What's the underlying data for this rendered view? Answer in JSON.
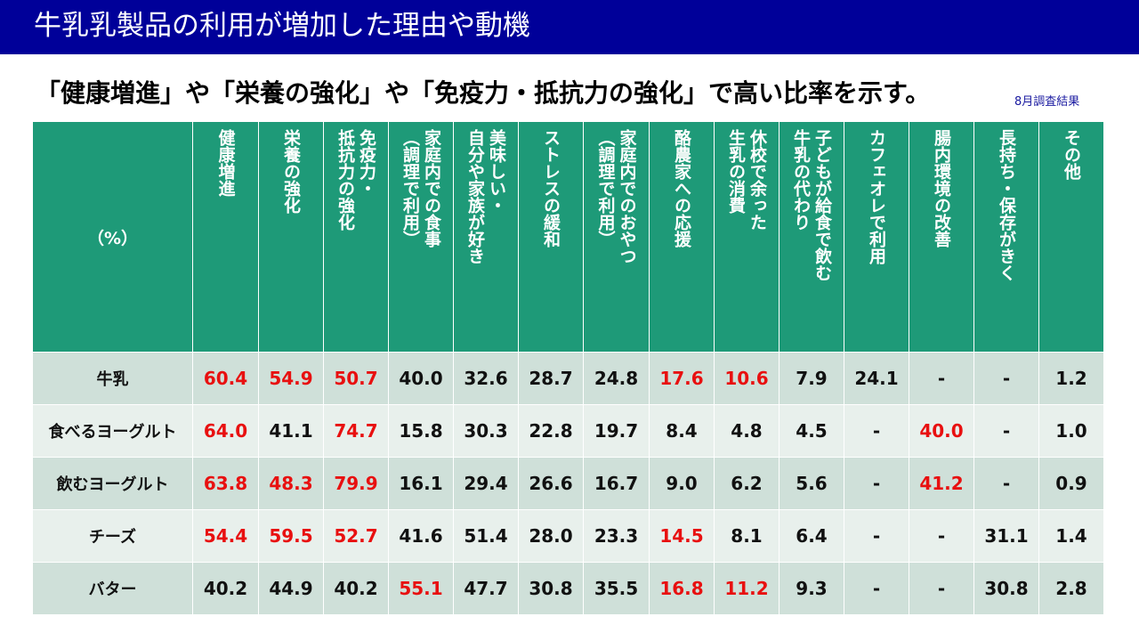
{
  "title": "牛乳乳製品の利用が増加した理由や動機",
  "subtitle": "「健康増進」や「栄養の強化」や「免疫力・抵抗力の強化」で高い比率を示す。",
  "note": "8月調査結果",
  "table": {
    "corner": "（%）",
    "columns": [
      "健康増進",
      "栄養の強化",
      "免疫力・\n抵抗力の強化",
      "家庭内での食事\n（調理で利用）",
      "美味しい・\n自分や家族が好き",
      "ストレスの緩和",
      "家庭内でのおやつ\n（調理で利用）",
      "酪農家への応援",
      "休校で余った\n生乳の消費",
      "子どもが給食で飲む\n牛乳の代わり",
      "カフェオレで利用",
      "腸内環境の改善",
      "長持ち・保存がきく",
      "その他"
    ],
    "rows": [
      {
        "label": "牛乳",
        "values": [
          "60.4",
          "54.9",
          "50.7",
          "40.0",
          "32.6",
          "28.7",
          "24.8",
          "17.6",
          "10.6",
          "7.9",
          "24.1",
          "-",
          "-",
          "1.2"
        ],
        "highlight": [
          0,
          1,
          2,
          7,
          8
        ]
      },
      {
        "label": "食べるヨーグルト",
        "values": [
          "64.0",
          "41.1",
          "74.7",
          "15.8",
          "30.3",
          "22.8",
          "19.7",
          "8.4",
          "4.8",
          "4.5",
          "-",
          "40.0",
          "-",
          "1.0"
        ],
        "highlight": [
          0,
          2,
          11
        ]
      },
      {
        "label": "飲むヨーグルト",
        "values": [
          "63.8",
          "48.3",
          "79.9",
          "16.1",
          "29.4",
          "26.6",
          "16.7",
          "9.0",
          "6.2",
          "5.6",
          "-",
          "41.2",
          "-",
          "0.9"
        ],
        "highlight": [
          0,
          1,
          2,
          11
        ]
      },
      {
        "label": "チーズ",
        "values": [
          "54.4",
          "59.5",
          "52.7",
          "41.6",
          "51.4",
          "28.0",
          "23.3",
          "14.5",
          "8.1",
          "6.4",
          "-",
          "-",
          "31.1",
          "1.4"
        ],
        "highlight": [
          0,
          1,
          2,
          7
        ]
      },
      {
        "label": "バター",
        "values": [
          "40.2",
          "44.9",
          "40.2",
          "55.1",
          "47.7",
          "30.8",
          "35.5",
          "16.8",
          "11.2",
          "9.3",
          "-",
          "-",
          "30.8",
          "2.8"
        ],
        "highlight": [
          3,
          7,
          8
        ]
      }
    ]
  },
  "colors": {
    "title_bar": "#000099",
    "header_bg": "#1e9a78",
    "row_dark": "#cfe0d9",
    "row_light": "#e8f0ec",
    "highlight": "#e81010"
  }
}
